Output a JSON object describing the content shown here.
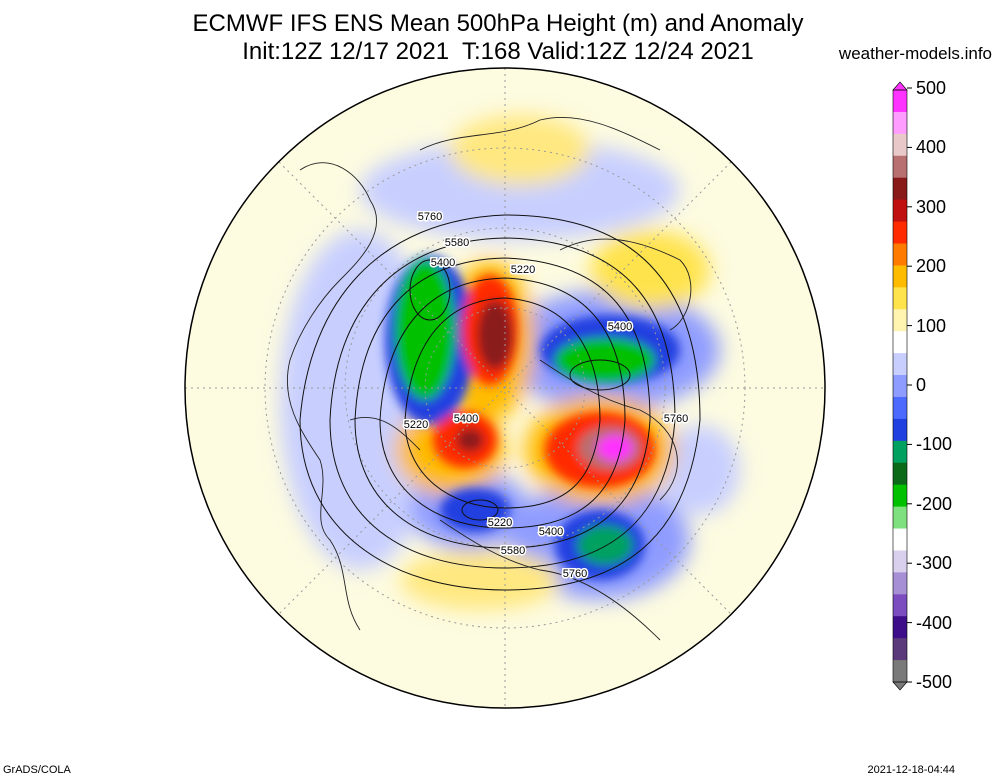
{
  "header": {
    "title_line1": "ECMWF IFS ENS Mean 500hPa Height (m) and Anomaly",
    "title_line2": "Init:12Z 12/17 2021  T:168 Valid:12Z 12/24 2021",
    "credit": "weather-models.info"
  },
  "colorbar": {
    "ticks": [
      "500",
      "400",
      "300",
      "200",
      "100",
      "0",
      "-100",
      "-200",
      "-300",
      "-400",
      "-500"
    ],
    "colors": [
      "#7a7a7a",
      "#5a3a7a",
      "#3d0d8a",
      "#7a4cc0",
      "#a78fd6",
      "#d8d0ec",
      "#ffffff",
      "#7fe07f",
      "#00c000",
      "#0a6a1a",
      "#00a060",
      "#2040e0",
      "#4d6aff",
      "#8f9cff",
      "#c8cfff",
      "#ffffff",
      "#fff4b0",
      "#ffe34d",
      "#ffbb00",
      "#ff7a00",
      "#ff2a00",
      "#c01010",
      "#8a1a1a",
      "#b87070",
      "#e8c8c8",
      "#ff9cff",
      "#ff33ff"
    ]
  },
  "contour_labels": [
    {
      "text": "5760"
    },
    {
      "text": "5580"
    },
    {
      "text": "5400"
    },
    {
      "text": "5220"
    },
    {
      "text": "5400"
    },
    {
      "text": "5220"
    },
    {
      "text": "5400"
    },
    {
      "text": "5760"
    },
    {
      "text": "5220"
    },
    {
      "text": "5400"
    },
    {
      "text": "5580"
    },
    {
      "text": "5760"
    }
  ],
  "footer": {
    "left": "GrADS/COLA",
    "right": "2021-12-18-04:44"
  }
}
